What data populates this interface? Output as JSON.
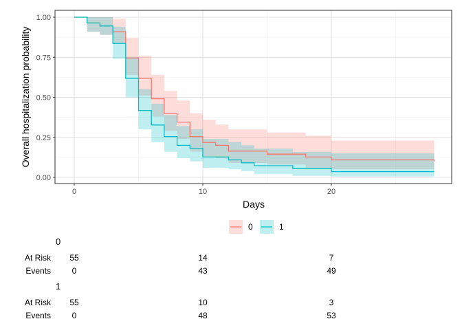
{
  "chart_data": {
    "type": "line",
    "subtype": "kaplan-meier step curves with confidence bands",
    "xlabel": "Days",
    "ylabel": "Overall hospitalization probability",
    "xlim": [
      0,
      29
    ],
    "ylim": [
      0,
      1.05
    ],
    "x_ticks": [
      0,
      10,
      20
    ],
    "x_tick_labels": [
      "0",
      "10",
      "20"
    ],
    "y_ticks": [
      0,
      0.25,
      0.5,
      0.75,
      1.0
    ],
    "y_tick_labels": [
      "0.00",
      "0.25",
      "0.50",
      "0.75",
      "1.00"
    ],
    "grid": true,
    "legend_position": "bottom",
    "series": [
      {
        "name": "0",
        "color": "#F8766D",
        "fill": "#F8766D",
        "steps": [
          [
            0,
            1.0
          ],
          [
            1,
            0.964
          ],
          [
            2,
            0.945
          ],
          [
            3,
            0.909
          ],
          [
            4,
            0.745
          ],
          [
            5,
            0.618
          ],
          [
            6,
            0.491
          ],
          [
            7,
            0.4
          ],
          [
            8,
            0.345
          ],
          [
            9,
            0.255
          ],
          [
            10,
            0.218
          ],
          [
            11,
            0.2
          ],
          [
            12,
            0.164
          ],
          [
            15,
            0.145
          ],
          [
            18,
            0.127
          ],
          [
            20,
            0.109
          ],
          [
            28,
            0.1
          ]
        ],
        "lower": [
          [
            0,
            1.0
          ],
          [
            1,
            0.91
          ],
          [
            2,
            0.89
          ],
          [
            3,
            0.84
          ],
          [
            4,
            0.64
          ],
          [
            5,
            0.51
          ],
          [
            6,
            0.38
          ],
          [
            7,
            0.29
          ],
          [
            8,
            0.24
          ],
          [
            9,
            0.16
          ],
          [
            10,
            0.13
          ],
          [
            11,
            0.12
          ],
          [
            12,
            0.09
          ],
          [
            15,
            0.08
          ],
          [
            18,
            0.06
          ],
          [
            20,
            0.05
          ],
          [
            28,
            0.04
          ]
        ],
        "upper": [
          [
            0,
            1.0
          ],
          [
            1,
            1.0
          ],
          [
            2,
            1.0
          ],
          [
            3,
            0.99
          ],
          [
            4,
            0.87
          ],
          [
            5,
            0.76
          ],
          [
            6,
            0.64
          ],
          [
            7,
            0.54
          ],
          [
            8,
            0.48
          ],
          [
            9,
            0.4
          ],
          [
            10,
            0.36
          ],
          [
            11,
            0.33
          ],
          [
            12,
            0.3
          ],
          [
            15,
            0.28
          ],
          [
            18,
            0.26
          ],
          [
            20,
            0.23
          ],
          [
            28,
            0.22
          ]
        ]
      },
      {
        "name": "1",
        "color": "#00BFC4",
        "fill": "#00BFC4",
        "steps": [
          [
            0,
            1.0
          ],
          [
            1,
            0.964
          ],
          [
            2,
            0.945
          ],
          [
            3,
            0.836
          ],
          [
            4,
            0.618
          ],
          [
            5,
            0.418
          ],
          [
            6,
            0.327
          ],
          [
            7,
            0.255
          ],
          [
            8,
            0.2
          ],
          [
            9,
            0.182
          ],
          [
            10,
            0.127
          ],
          [
            12,
            0.109
          ],
          [
            13,
            0.091
          ],
          [
            14,
            0.073
          ],
          [
            17,
            0.055
          ],
          [
            20,
            0.036
          ],
          [
            28,
            0.036
          ]
        ],
        "lower": [
          [
            0,
            1.0
          ],
          [
            1,
            0.91
          ],
          [
            2,
            0.89
          ],
          [
            3,
            0.74
          ],
          [
            4,
            0.5
          ],
          [
            5,
            0.3
          ],
          [
            6,
            0.22
          ],
          [
            7,
            0.16
          ],
          [
            8,
            0.12
          ],
          [
            9,
            0.1
          ],
          [
            10,
            0.06
          ],
          [
            12,
            0.05
          ],
          [
            13,
            0.04
          ],
          [
            14,
            0.02
          ],
          [
            17,
            0.01
          ],
          [
            20,
            0.005
          ],
          [
            28,
            0.005
          ]
        ],
        "upper": [
          [
            0,
            1.0
          ],
          [
            1,
            1.0
          ],
          [
            2,
            1.0
          ],
          [
            3,
            0.94
          ],
          [
            4,
            0.75
          ],
          [
            5,
            0.55
          ],
          [
            6,
            0.46
          ],
          [
            7,
            0.39
          ],
          [
            8,
            0.32
          ],
          [
            9,
            0.3
          ],
          [
            10,
            0.24
          ],
          [
            12,
            0.22
          ],
          [
            13,
            0.2
          ],
          [
            14,
            0.18
          ],
          [
            17,
            0.16
          ],
          [
            20,
            0.15
          ],
          [
            28,
            0.15
          ]
        ]
      }
    ],
    "risk_table": {
      "row_labels": [
        "At Risk",
        "Events"
      ],
      "times": [
        0,
        10,
        20
      ],
      "groups": [
        {
          "name": "0",
          "at_risk": [
            "55",
            "14",
            "7"
          ],
          "events": [
            "0",
            "43",
            "49"
          ]
        },
        {
          "name": "1",
          "at_risk": [
            "55",
            "10",
            "3"
          ],
          "events": [
            "0",
            "48",
            "53"
          ]
        }
      ]
    }
  }
}
